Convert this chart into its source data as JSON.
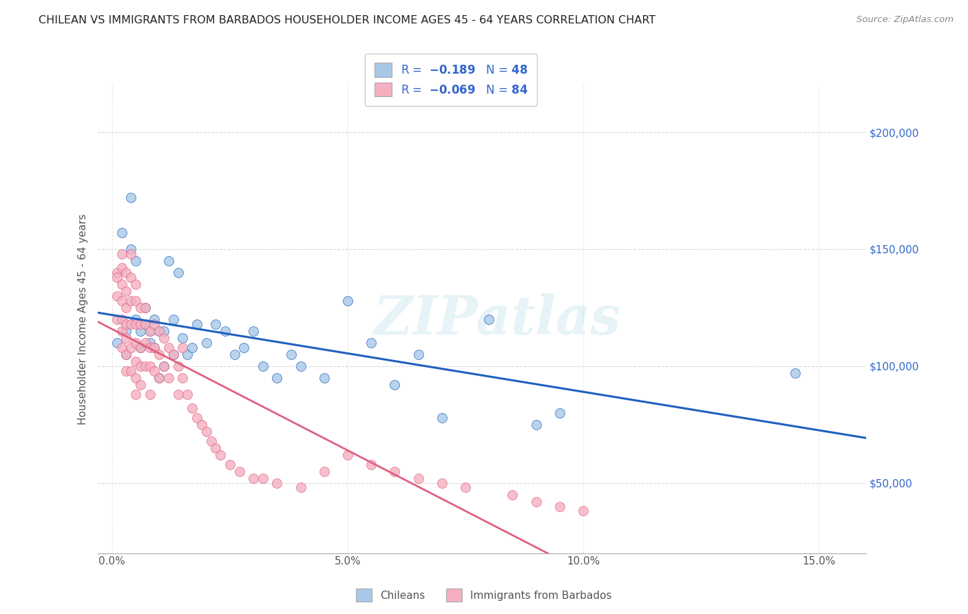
{
  "title": "CHILEAN VS IMMIGRANTS FROM BARBADOS HOUSEHOLDER INCOME AGES 45 - 64 YEARS CORRELATION CHART",
  "source": "Source: ZipAtlas.com",
  "ylabel": "Householder Income Ages 45 - 64 years",
  "xlabel_ticks": [
    "0.0%",
    "5.0%",
    "10.0%",
    "15.0%"
  ],
  "xlabel_tick_vals": [
    0.0,
    0.05,
    0.1,
    0.15
  ],
  "ylabel_ticks": [
    "$50,000",
    "$100,000",
    "$150,000",
    "$200,000"
  ],
  "ylabel_tick_vals": [
    50000,
    100000,
    150000,
    200000
  ],
  "xlim": [
    -0.003,
    0.16
  ],
  "ylim": [
    20000,
    220000
  ],
  "blue_R": -0.189,
  "blue_N": 48,
  "pink_R": -0.069,
  "pink_N": 84,
  "blue_color": "#a8c8e8",
  "pink_color": "#f4b0c0",
  "trendline_blue": "#2060c0",
  "trendline_pink": "#e06080",
  "watermark": "ZIPatlas",
  "legend_label_blue": "Chileans",
  "legend_label_pink": "Immigrants from Barbados",
  "blue_scatter_x": [
    0.001,
    0.002,
    0.003,
    0.003,
    0.004,
    0.004,
    0.005,
    0.005,
    0.006,
    0.006,
    0.007,
    0.007,
    0.008,
    0.008,
    0.009,
    0.009,
    0.01,
    0.01,
    0.011,
    0.011,
    0.012,
    0.013,
    0.013,
    0.014,
    0.015,
    0.016,
    0.017,
    0.018,
    0.02,
    0.022,
    0.024,
    0.026,
    0.028,
    0.03,
    0.032,
    0.035,
    0.038,
    0.04,
    0.045,
    0.05,
    0.055,
    0.06,
    0.065,
    0.07,
    0.08,
    0.09,
    0.095,
    0.145
  ],
  "blue_scatter_y": [
    110000,
    157000,
    115000,
    105000,
    172000,
    150000,
    145000,
    120000,
    115000,
    108000,
    125000,
    118000,
    115000,
    110000,
    120000,
    108000,
    115000,
    95000,
    115000,
    100000,
    145000,
    105000,
    120000,
    140000,
    112000,
    105000,
    108000,
    118000,
    110000,
    118000,
    115000,
    105000,
    108000,
    115000,
    100000,
    95000,
    105000,
    100000,
    95000,
    128000,
    110000,
    92000,
    105000,
    78000,
    120000,
    75000,
    80000,
    97000
  ],
  "pink_scatter_x": [
    0.001,
    0.001,
    0.001,
    0.001,
    0.002,
    0.002,
    0.002,
    0.002,
    0.002,
    0.002,
    0.002,
    0.003,
    0.003,
    0.003,
    0.003,
    0.003,
    0.003,
    0.003,
    0.004,
    0.004,
    0.004,
    0.004,
    0.004,
    0.004,
    0.005,
    0.005,
    0.005,
    0.005,
    0.005,
    0.005,
    0.005,
    0.006,
    0.006,
    0.006,
    0.006,
    0.006,
    0.007,
    0.007,
    0.007,
    0.007,
    0.008,
    0.008,
    0.008,
    0.008,
    0.009,
    0.009,
    0.009,
    0.01,
    0.01,
    0.01,
    0.011,
    0.011,
    0.012,
    0.012,
    0.013,
    0.014,
    0.014,
    0.015,
    0.015,
    0.016,
    0.017,
    0.018,
    0.019,
    0.02,
    0.021,
    0.022,
    0.023,
    0.025,
    0.027,
    0.03,
    0.032,
    0.035,
    0.04,
    0.045,
    0.05,
    0.055,
    0.06,
    0.065,
    0.07,
    0.075,
    0.085,
    0.09,
    0.095,
    0.1
  ],
  "pink_scatter_y": [
    140000,
    138000,
    130000,
    120000,
    148000,
    142000,
    135000,
    128000,
    120000,
    115000,
    108000,
    140000,
    132000,
    125000,
    118000,
    112000,
    105000,
    98000,
    148000,
    138000,
    128000,
    118000,
    108000,
    98000,
    135000,
    128000,
    118000,
    110000,
    102000,
    95000,
    88000,
    125000,
    118000,
    108000,
    100000,
    92000,
    125000,
    118000,
    110000,
    100000,
    115000,
    108000,
    100000,
    88000,
    118000,
    108000,
    98000,
    115000,
    105000,
    95000,
    112000,
    100000,
    108000,
    95000,
    105000,
    100000,
    88000,
    108000,
    95000,
    88000,
    82000,
    78000,
    75000,
    72000,
    68000,
    65000,
    62000,
    58000,
    55000,
    52000,
    52000,
    50000,
    48000,
    55000,
    62000,
    58000,
    55000,
    52000,
    50000,
    48000,
    45000,
    42000,
    40000,
    38000
  ]
}
